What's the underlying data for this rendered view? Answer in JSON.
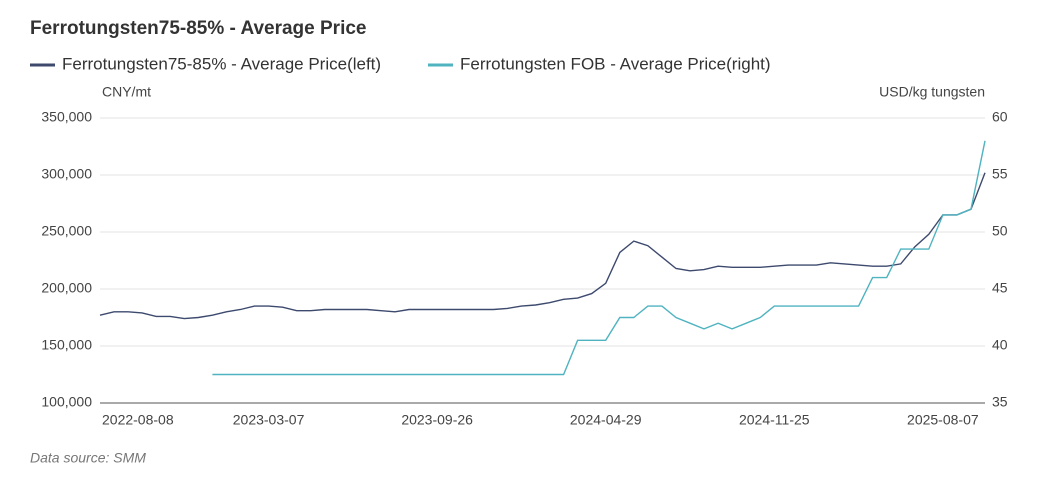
{
  "chart_data": {
    "type": "line",
    "title": "Ferrotungsten75-85% - Average Price",
    "y_label": "CNY/mt",
    "y2_label": "USD/kg tungsten",
    "source": "Data source:  SMM",
    "categories": [
      "2022-08-08",
      null,
      null,
      null,
      null,
      null,
      null,
      null,
      null,
      null,
      null,
      null,
      "2023-03-07",
      null,
      null,
      null,
      null,
      null,
      null,
      null,
      null,
      null,
      null,
      null,
      "2023-09-26",
      null,
      null,
      null,
      null,
      null,
      null,
      null,
      null,
      null,
      null,
      null,
      "2024-04-29",
      null,
      null,
      null,
      null,
      null,
      null,
      null,
      null,
      null,
      null,
      null,
      "2024-11-25",
      null,
      null,
      null,
      null,
      null,
      null,
      null,
      null,
      null,
      null,
      null,
      "2025-08-07",
      null,
      null,
      null
    ],
    "series": [
      {
        "name": "Ferrotungsten75-85% - Average Price(left)",
        "color": "#3d4a6e",
        "axis": "y",
        "values": [
          177000,
          180000,
          180000,
          179000,
          176000,
          176000,
          174000,
          175000,
          177000,
          180000,
          182000,
          185000,
          185000,
          184000,
          181000,
          181000,
          182000,
          182000,
          182000,
          182000,
          181000,
          180000,
          182000,
          182000,
          182000,
          182000,
          182000,
          182000,
          182000,
          183000,
          185000,
          186000,
          188000,
          191000,
          192000,
          196000,
          205000,
          232000,
          242000,
          238000,
          228000,
          218000,
          216000,
          217000,
          220000,
          219000,
          219000,
          219000,
          220000,
          221000,
          221000,
          221000,
          223000,
          222000,
          221000,
          220000,
          220000,
          222000,
          237000,
          248000,
          265000,
          265000,
          270000,
          302000
        ]
      },
      {
        "name": "Ferrotungsten FOB - Average Price(right)",
        "color": "#4fb3c0",
        "axis": "y2",
        "values": [
          null,
          null,
          null,
          null,
          null,
          null,
          null,
          null,
          37.5,
          37.5,
          37.5,
          37.5,
          37.5,
          37.5,
          37.5,
          37.5,
          37.5,
          37.5,
          37.5,
          37.5,
          37.5,
          37.5,
          37.5,
          37.5,
          37.5,
          37.5,
          37.5,
          37.5,
          37.5,
          37.5,
          37.5,
          37.5,
          37.5,
          37.5,
          40.5,
          40.5,
          40.5,
          42.5,
          42.5,
          43.5,
          43.5,
          42.5,
          42,
          41.5,
          42,
          41.5,
          42,
          42.5,
          43.5,
          43.5,
          43.5,
          43.5,
          43.5,
          43.5,
          43.5,
          46,
          46,
          48.5,
          48.5,
          48.5,
          51.5,
          51.5,
          52,
          58
        ]
      }
    ],
    "ylim": [
      100000,
      350000
    ],
    "yticks": [
      {
        "value": 100000,
        "label": "100,000"
      },
      {
        "value": 150000,
        "label": "150,000"
      },
      {
        "value": 200000,
        "label": "200,000"
      },
      {
        "value": 250000,
        "label": "250,000"
      },
      {
        "value": 300000,
        "label": "300,000"
      },
      {
        "value": 350000,
        "label": "350,000"
      }
    ],
    "y2lim": [
      35,
      60
    ],
    "y2ticks": [
      35,
      40,
      45,
      50,
      55,
      60
    ],
    "grid": true
  }
}
